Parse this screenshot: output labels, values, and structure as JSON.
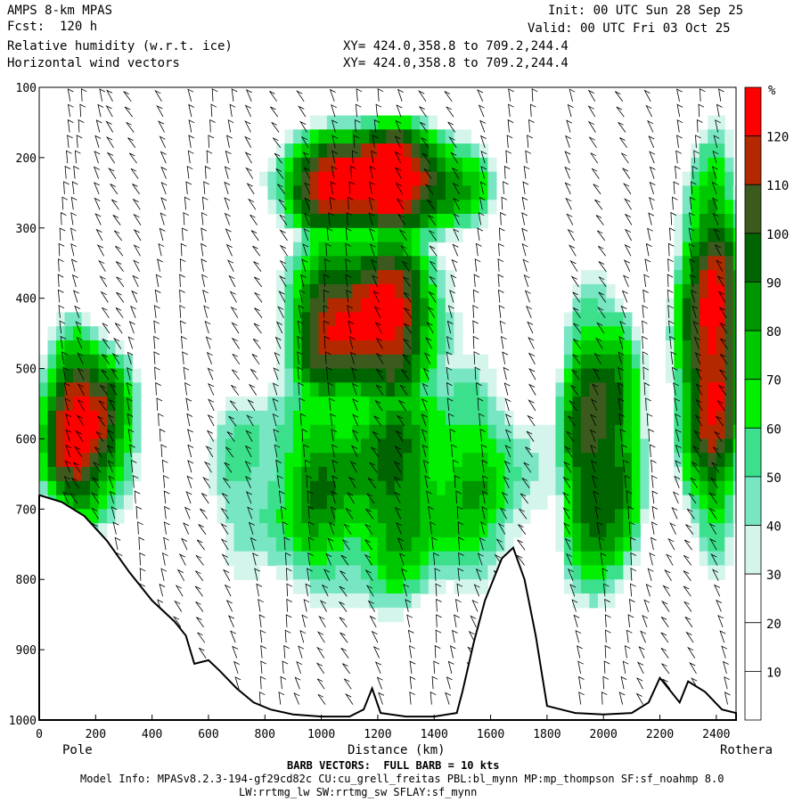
{
  "header": {
    "model": "AMPS 8-km MPAS",
    "forecast": "Fcst:  120 h",
    "field1": "Relative humidity (w.r.t. ice)",
    "field2": "Horizontal wind vectors",
    "init": "Init: 00 UTC Sun 28 Sep 25",
    "valid": "Valid: 00 UTC Fri 03 Oct 25",
    "xy1": "XY= 424.0,358.8 to 709.2,244.4",
    "xy2": "XY= 424.0,358.8 to 709.2,244.4"
  },
  "footer": {
    "left_end": "Pole",
    "right_end": "Rothera",
    "barb_note": "BARB VECTORS:  FULL BARB = 10 kts",
    "model_info": "Model Info: MPASv8.2.3-194-gf29cd82c CU:cu_grell_freitas PBL:bl_mynn MP:mp_thompson SF:sf_noahmp 8.0",
    "model_info2": "LW:rrtmg_lw SW:rrtmg_sw SFLAY:sf_mynn"
  },
  "colorbar": {
    "unit": "%",
    "levels": [
      10,
      20,
      30,
      40,
      50,
      60,
      70,
      80,
      90,
      100,
      110,
      120
    ],
    "colors": [
      "#ffffff",
      "#ffffff",
      "#ffffff",
      "#d4f5ec",
      "#78e6c2",
      "#3ce08c",
      "#00f000",
      "#00c800",
      "#009600",
      "#006400",
      "#3c5a1e",
      "#b42800",
      "#ff0000"
    ]
  },
  "chart_data": {
    "type": "heatmap",
    "title": "Relative humidity (w.r.t. ice)",
    "xlabel": "Distance (km)",
    "ylabel": "",
    "xlim": [
      0,
      2470
    ],
    "ylim": [
      1000,
      100
    ],
    "x_ticks": [
      0,
      200,
      400,
      600,
      800,
      1000,
      1200,
      1400,
      1600,
      1800,
      2000,
      2200,
      2400
    ],
    "y_ticks": [
      100,
      200,
      300,
      400,
      500,
      600,
      700,
      800,
      900,
      1000
    ],
    "terrain_hpa": [
      [
        0,
        680
      ],
      [
        80,
        690
      ],
      [
        160,
        710
      ],
      [
        240,
        745
      ],
      [
        320,
        790
      ],
      [
        400,
        830
      ],
      [
        480,
        860
      ],
      [
        520,
        880
      ],
      [
        550,
        920
      ],
      [
        600,
        915
      ],
      [
        640,
        930
      ],
      [
        700,
        955
      ],
      [
        760,
        975
      ],
      [
        820,
        985
      ],
      [
        900,
        992
      ],
      [
        1000,
        995
      ],
      [
        1100,
        995
      ],
      [
        1150,
        985
      ],
      [
        1180,
        955
      ],
      [
        1210,
        990
      ],
      [
        1300,
        995
      ],
      [
        1400,
        995
      ],
      [
        1480,
        990
      ],
      [
        1500,
        960
      ],
      [
        1540,
        890
      ],
      [
        1580,
        830
      ],
      [
        1640,
        770
      ],
      [
        1680,
        755
      ],
      [
        1720,
        800
      ],
      [
        1760,
        880
      ],
      [
        1800,
        980
      ],
      [
        1900,
        990
      ],
      [
        2000,
        992
      ],
      [
        2100,
        990
      ],
      [
        2160,
        975
      ],
      [
        2200,
        940
      ],
      [
        2240,
        960
      ],
      [
        2270,
        975
      ],
      [
        2300,
        945
      ],
      [
        2360,
        960
      ],
      [
        2420,
        985
      ],
      [
        2470,
        990
      ]
    ],
    "moist_regions": [
      {
        "x": [
          860,
          1500
        ],
        "p": [
          150,
          300
        ],
        "rh": 110
      },
      {
        "x": [
          880,
          1400
        ],
        "p": [
          300,
          550
        ],
        "rh": 100
      },
      {
        "x": [
          0,
          300
        ],
        "p": [
          450,
          700
        ],
        "rh": 100
      },
      {
        "x": [
          1850,
          2100
        ],
        "p": [
          400,
          800
        ],
        "rh": 90
      },
      {
        "x": [
          2250,
          2470
        ],
        "p": [
          220,
          700
        ],
        "rh": 100
      },
      {
        "x": [
          700,
          1700
        ],
        "p": [
          500,
          800
        ],
        "rh": 70
      }
    ]
  }
}
